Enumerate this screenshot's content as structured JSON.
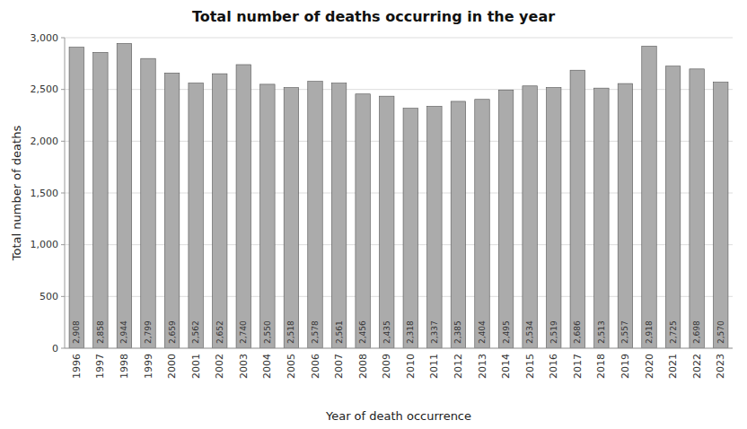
{
  "chart_data": {
    "type": "bar",
    "title": "Total number of deaths occurring in the year",
    "xlabel": "Year of death occurrence",
    "ylabel": "Total number of deaths",
    "categories": [
      "1996",
      "1997",
      "1998",
      "1999",
      "2000",
      "2001",
      "2002",
      "2003",
      "2004",
      "2005",
      "2006",
      "2007",
      "2008",
      "2009",
      "2010",
      "2011",
      "2012",
      "2013",
      "2014",
      "2015",
      "2016",
      "2017",
      "2018",
      "2019",
      "2020",
      "2021",
      "2022",
      "2023"
    ],
    "values": [
      2908,
      2858,
      2944,
      2799,
      2659,
      2562,
      2652,
      2740,
      2550,
      2518,
      2578,
      2561,
      2456,
      2435,
      2318,
      2337,
      2385,
      2404,
      2495,
      2534,
      2519,
      2686,
      2513,
      2557,
      2918,
      2725,
      2698,
      2570
    ],
    "value_labels": [
      "2,908",
      "2,858",
      "2,944",
      "2,799",
      "2,659",
      "2,562",
      "2,652",
      "2,740",
      "2,550",
      "2,518",
      "2,578",
      "2,561",
      "2,456",
      "2,435",
      "2,318",
      "2,337",
      "2,385",
      "2,404",
      "2,495",
      "2,534",
      "2,519",
      "2,686",
      "2,513",
      "2,557",
      "2,918",
      "2,725",
      "2,698",
      "2,570"
    ],
    "data_labels": true,
    "color": "#ABABAB",
    "ylim": [
      0,
      3000
    ],
    "yticks": [
      0,
      500,
      {
        "value": 1000,
        "label": "1,000"
      },
      {
        "value": 1500,
        "label": "1,500"
      },
      {
        "value": 2000,
        "label": "2,000"
      },
      {
        "value": 2500,
        "label": "2,500"
      },
      {
        "value": 3000,
        "label": "3,000"
      }
    ],
    "grid": true
  }
}
